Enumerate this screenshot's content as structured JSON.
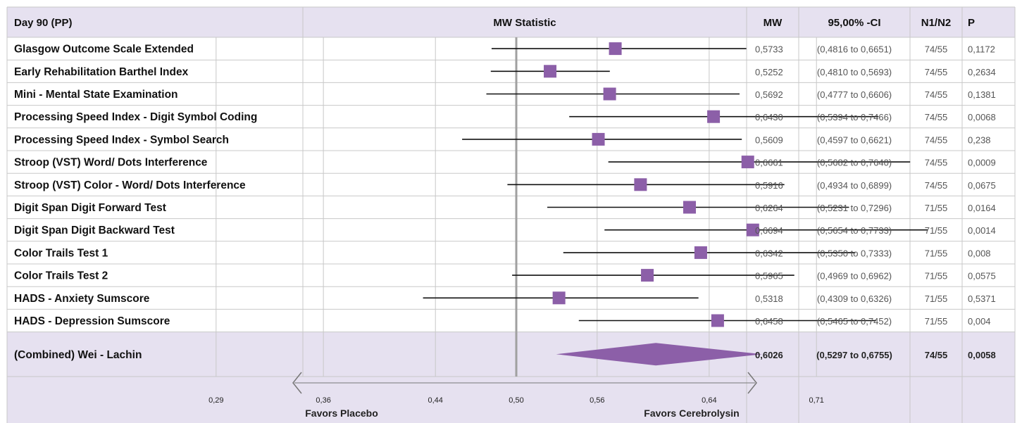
{
  "header": {
    "title": "Day 90 (PP)",
    "plot_title": "MW Statistic",
    "col_mw": "MW",
    "col_ci": "95,00% -CI",
    "col_n": "N1/N2",
    "col_p": "P"
  },
  "rows": [
    {
      "label": "Glasgow Outcome Scale Extended",
      "mw": "0,5733",
      "ci": "(0,4816 to 0,6651)",
      "n": "74/55",
      "p": "0,1172"
    },
    {
      "label": "Early Rehabilitation Barthel Index",
      "mw": "0,5252",
      "ci": "(0,4810 to 0,5693)",
      "n": "74/55",
      "p": "0,2634"
    },
    {
      "label": "Mini - Mental State Examination",
      "mw": "0,5692",
      "ci": "(0,4777 to 0,6606)",
      "n": "74/55",
      "p": "0,1381"
    },
    {
      "label": "Processing Speed Index - Digit Symbol Coding",
      "mw": "0,6430",
      "ci": "(0,5394 to 0,7466)",
      "n": "74/55",
      "p": "0,0068"
    },
    {
      "label": "Processing Speed Index - Symbol Search",
      "mw": "0,5609",
      "ci": "(0,4597 to 0,6621)",
      "n": "74/55",
      "p": "0,238"
    },
    {
      "label": "Stroop (VST) Word/ Dots Interference",
      "mw": "0,6661",
      "ci": "(0,5682 to 0,7640)",
      "n": "74/55",
      "p": "0,0009"
    },
    {
      "label": "Stroop (VST) Color - Word/ Dots Interference",
      "mw": "0,5916",
      "ci": "(0,4934 to 0,6899)",
      "n": "74/55",
      "p": "0,0675"
    },
    {
      "label": "Digit Span Digit Forward Test",
      "mw": "0,6264",
      "ci": "(0,5231 to 0,7296)",
      "n": "71/55",
      "p": "0,0164"
    },
    {
      "label": "Digit Span Digit Backward Test",
      "mw": "0,6694",
      "ci": "(0,5654 to 0,7733)",
      "n": "71/55",
      "p": "0,0014"
    },
    {
      "label": "Color Trails Test 1",
      "mw": "0,6342",
      "ci": "(0,5350 to 0,7333)",
      "n": "71/55",
      "p": "0,008"
    },
    {
      "label": "Color Trails Test 2",
      "mw": "0,5965",
      "ci": "(0,4969 to 0,6962)",
      "n": "71/55",
      "p": "0,0575"
    },
    {
      "label": "HADS - Anxiety Sumscore",
      "mw": "0,5318",
      "ci": "(0,4309 to 0,6326)",
      "n": "71/55",
      "p": "0,5371"
    },
    {
      "label": "HADS - Depression Sumscore",
      "mw": "0,6458",
      "ci": "(0,5465 to 0,7452)",
      "n": "71/55",
      "p": "0,004"
    }
  ],
  "combined": {
    "label": "(Combined) Wei - Lachin",
    "mw": "0,6026",
    "ci": "(0,5297 to 0,6755)",
    "n": "74/55",
    "p": "0,0058"
  },
  "axis": {
    "tick_labels": [
      "0,29",
      "0,36",
      "0,44",
      "0,50",
      "0,56",
      "0,64",
      "0,71"
    ],
    "favors_left": "Favors Placebo",
    "favors_right": "Favors Cerebrolysin"
  },
  "chart_data": {
    "type": "forest",
    "title": "MW Statistic",
    "xlabel": "",
    "reference_value": 0.5,
    "x_scale": "log-odds",
    "ticks": [
      0.29,
      0.36,
      0.44,
      0.5,
      0.56,
      0.64,
      0.71
    ],
    "points": [
      {
        "label": "Glasgow Outcome Scale Extended",
        "estimate": 0.5733,
        "lower": 0.4816,
        "upper": 0.6651
      },
      {
        "label": "Early Rehabilitation Barthel Index",
        "estimate": 0.5252,
        "lower": 0.481,
        "upper": 0.5693
      },
      {
        "label": "Mini - Mental State Examination",
        "estimate": 0.5692,
        "lower": 0.4777,
        "upper": 0.6606
      },
      {
        "label": "Processing Speed Index - Digit Symbol Coding",
        "estimate": 0.643,
        "lower": 0.5394,
        "upper": 0.7466
      },
      {
        "label": "Processing Speed Index - Symbol Search",
        "estimate": 0.5609,
        "lower": 0.4597,
        "upper": 0.6621
      },
      {
        "label": "Stroop (VST) Word/ Dots Interference",
        "estimate": 0.6661,
        "lower": 0.5682,
        "upper": 0.764
      },
      {
        "label": "Stroop (VST) Color - Word/ Dots Interference",
        "estimate": 0.5916,
        "lower": 0.4934,
        "upper": 0.6899
      },
      {
        "label": "Digit Span Digit Forward Test",
        "estimate": 0.6264,
        "lower": 0.5231,
        "upper": 0.7296
      },
      {
        "label": "Digit Span Digit Backward Test",
        "estimate": 0.6694,
        "lower": 0.5654,
        "upper": 0.7733
      },
      {
        "label": "Color Trails Test 1",
        "estimate": 0.6342,
        "lower": 0.535,
        "upper": 0.7333
      },
      {
        "label": "Color Trails Test 2",
        "estimate": 0.5965,
        "lower": 0.4969,
        "upper": 0.6962
      },
      {
        "label": "HADS - Anxiety Sumscore",
        "estimate": 0.5318,
        "lower": 0.4309,
        "upper": 0.6326
      },
      {
        "label": "HADS - Depression Sumscore",
        "estimate": 0.6458,
        "lower": 0.5465,
        "upper": 0.7452
      }
    ],
    "combined": {
      "label": "(Combined) Wei - Lachin",
      "estimate": 0.6026,
      "lower": 0.5297,
      "upper": 0.6755
    }
  },
  "colors": {
    "header_bg": "#e6e1f0",
    "marker": "#8c5fa8",
    "grid": "#c8c8c8",
    "reference_line": "#a0a0a0",
    "whisker": "#111111"
  }
}
